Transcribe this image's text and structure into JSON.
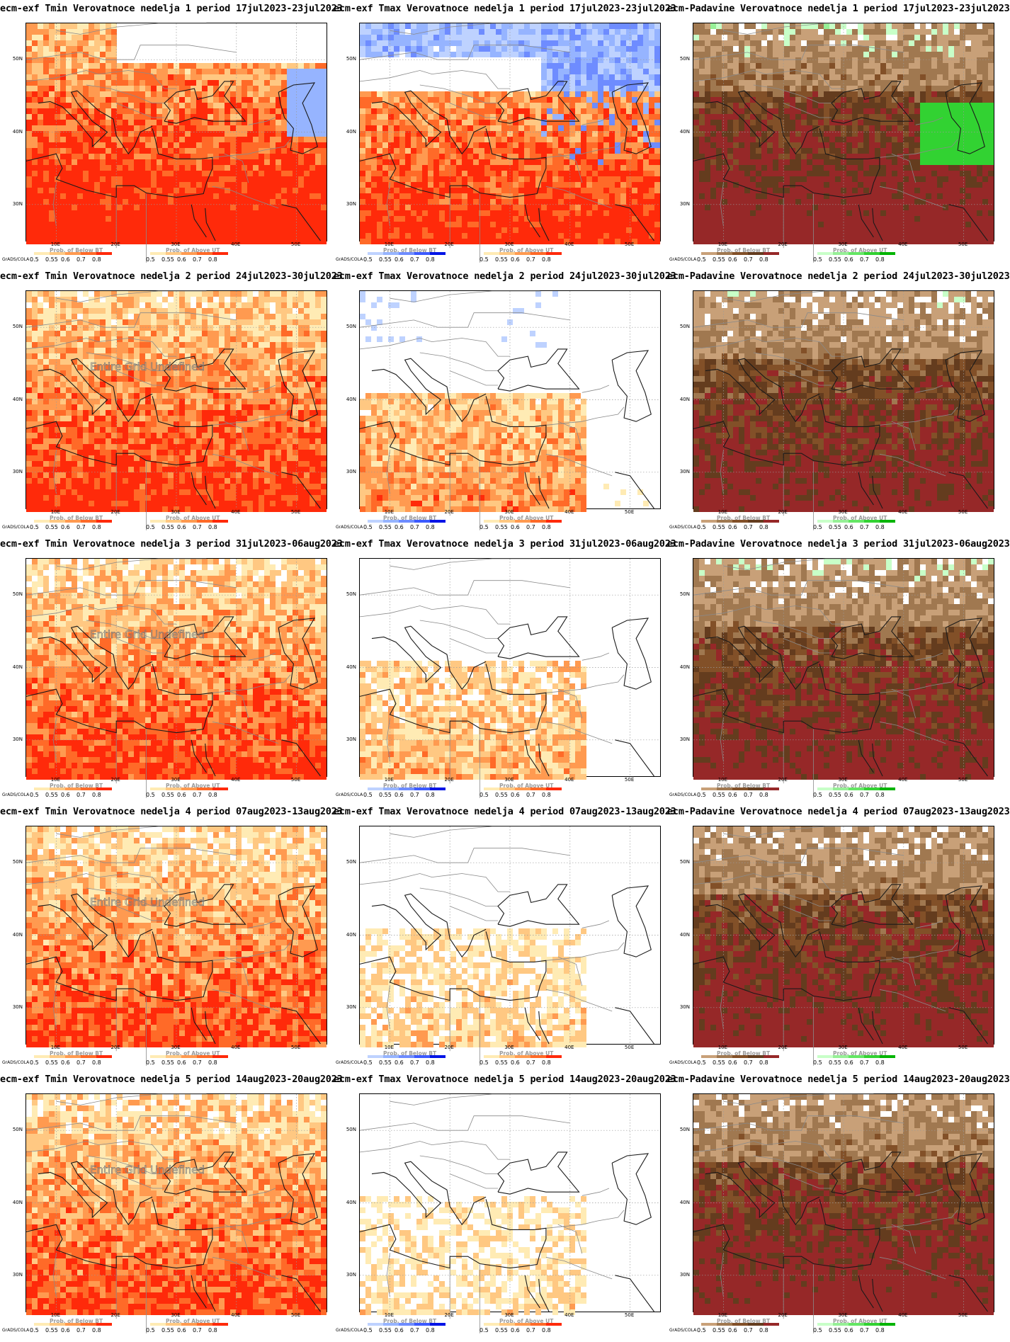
{
  "tick_labels": {
    "lat": [
      "50N",
      "40N",
      "30N"
    ],
    "lon": [
      "10E",
      "20E",
      "30E",
      "40E",
      "50E"
    ]
  },
  "legend": {
    "grads": "GrADS/COLA",
    "below_title": "Prob. of Below BT",
    "above_title": "Prob. of Above UT",
    "values": [
      "0.5",
      "0.55",
      "0.6",
      "0.7",
      "0.8"
    ],
    "tmin_below_colors": [
      "#bed2ff",
      "#96b4ff",
      "#6e8cff",
      "#3c5aff",
      "#0014e6"
    ],
    "tmin_above_colors": [
      "#ffebb4",
      "#ffc882",
      "#ff9a50",
      "#ff6a28",
      "#ff2a0a"
    ],
    "precip_below_colors": [
      "#c8a078",
      "#a07850",
      "#825028",
      "#643c1e",
      "#962828"
    ],
    "precip_above_colors": [
      "#c8ffc8",
      "#96f096",
      "#64e664",
      "#32d232",
      "#00b400"
    ]
  },
  "overlay_text": "Entire Grid Undefined",
  "panels": [
    {
      "title": "ecm-exf Tmin Verovatnoce nedelja 1 period 17jul2023-23jul2023",
      "kind": "tmin",
      "week": 1,
      "above_level": 0.92,
      "below_level": 0.08
    },
    {
      "title": "ecm-exf Tmax Verovatnoce nedelja 1 period 17jul2023-23jul2023",
      "kind": "tmax",
      "week": 1,
      "above_level": 0.82,
      "below_level": 0.55
    },
    {
      "title": "ecm-Padavine Verovatnoce nedelja 1 period 17jul2023-23jul2023",
      "kind": "precip",
      "week": 1,
      "above_level": 0.3,
      "below_level": 0.92
    },
    {
      "title": "ecm-exf Tmin Verovatnoce nedelja 2 period 24jul2023-30jul2023",
      "kind": "tmin",
      "week": 2,
      "above_level": 0.8,
      "below_level": 0.0,
      "undefined": true
    },
    {
      "title": "ecm-exf Tmax Verovatnoce nedelja 2 period 24jul2023-30jul2023",
      "kind": "tmax",
      "week": 2,
      "above_level": 0.55,
      "below_level": 0.3
    },
    {
      "title": "ecm-Padavine Verovatnoce nedelja 2 period 24jul2023-30jul2023",
      "kind": "precip",
      "week": 2,
      "above_level": 0.2,
      "below_level": 0.85
    },
    {
      "title": "ecm-exf Tmin Verovatnoce nedelja 3 period 31jul2023-06aug2023",
      "kind": "tmin",
      "week": 3,
      "above_level": 0.75,
      "below_level": 0.0,
      "undefined": true
    },
    {
      "title": "ecm-exf Tmax Verovatnoce nedelja 3 period 31jul2023-06aug2023",
      "kind": "tmax",
      "week": 3,
      "above_level": 0.45,
      "below_level": 0.25
    },
    {
      "title": "ecm-Padavine Verovatnoce nedelja 3 period 31jul2023-06aug2023",
      "kind": "precip",
      "week": 3,
      "above_level": 0.25,
      "below_level": 0.85
    },
    {
      "title": "ecm-exf Tmin Verovatnoce nedelja 4 period 07aug2023-13aug2023",
      "kind": "tmin",
      "week": 4,
      "above_level": 0.72,
      "below_level": 0.0,
      "undefined": true
    },
    {
      "title": "ecm-exf Tmax Verovatnoce nedelja 4 period 07aug2023-13aug2023",
      "kind": "tmax",
      "week": 4,
      "above_level": 0.35,
      "below_level": 0.25
    },
    {
      "title": "ecm-Padavine Verovatnoce nedelja 4 period 07aug2023-13aug2023",
      "kind": "precip",
      "week": 4,
      "above_level": 0.1,
      "below_level": 0.88
    },
    {
      "title": "ecm-exf Tmin Verovatnoce nedelja 5 period 14aug2023-20aug2023",
      "kind": "tmin",
      "week": 5,
      "above_level": 0.72,
      "below_level": 0.0,
      "undefined": true
    },
    {
      "title": "ecm-exf Tmax Verovatnoce nedelja 5 period 14aug2023-20aug2023",
      "kind": "tmax",
      "week": 5,
      "above_level": 0.3,
      "below_level": 0.22
    },
    {
      "title": "ecm-Padavine Verovatnoce nedelja 5 period 14aug2023-20aug2023",
      "kind": "precip",
      "week": 5,
      "above_level": 0.12,
      "below_level": 0.9
    }
  ]
}
